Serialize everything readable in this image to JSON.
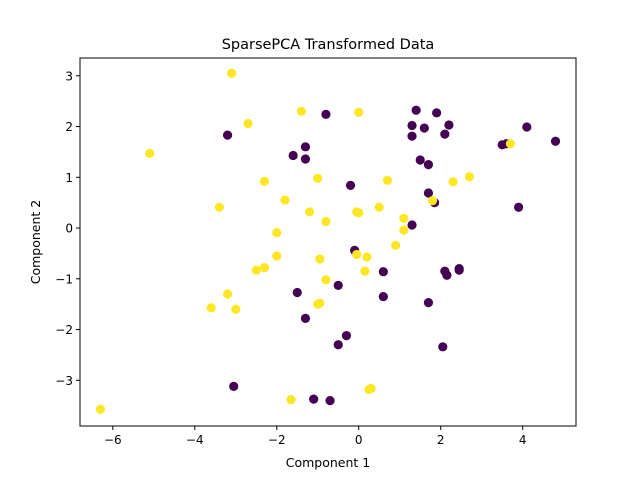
{
  "chart_data": {
    "type": "scatter",
    "title": "SparsePCA Transformed Data",
    "xlabel": "Component 1",
    "ylabel": "Component 2",
    "xlim": [
      -6.8,
      5.3
    ],
    "ylim": [
      -3.9,
      3.35
    ],
    "xticks": [
      -6,
      -4,
      -2,
      0,
      2,
      4
    ],
    "yticks": [
      -3,
      -2,
      -1,
      0,
      1,
      2,
      3
    ],
    "grid": false,
    "legend": "none",
    "series": [
      {
        "color": "#440154",
        "points": [
          {
            "x": -3.2,
            "y": 1.83
          },
          {
            "x": -1.3,
            "y": 1.6
          },
          {
            "x": -1.6,
            "y": 1.43
          },
          {
            "x": -1.3,
            "y": 1.36
          },
          {
            "x": -0.8,
            "y": 2.24
          },
          {
            "x": -0.2,
            "y": 0.84
          },
          {
            "x": 1.3,
            "y": 1.81
          },
          {
            "x": 1.4,
            "y": 2.32
          },
          {
            "x": 1.3,
            "y": 2.02
          },
          {
            "x": 1.6,
            "y": 1.97
          },
          {
            "x": 1.9,
            "y": 2.27
          },
          {
            "x": 2.1,
            "y": 1.85
          },
          {
            "x": 2.2,
            "y": 2.03
          },
          {
            "x": 1.5,
            "y": 1.34
          },
          {
            "x": 1.7,
            "y": 1.25
          },
          {
            "x": 1.7,
            "y": 0.69
          },
          {
            "x": 1.85,
            "y": 0.5
          },
          {
            "x": 1.3,
            "y": 0.06
          },
          {
            "x": 3.6,
            "y": 1.66
          },
          {
            "x": 3.5,
            "y": 1.64
          },
          {
            "x": 4.1,
            "y": 1.99
          },
          {
            "x": 4.8,
            "y": 1.71
          },
          {
            "x": 3.9,
            "y": 0.41
          },
          {
            "x": -0.1,
            "y": -0.44
          },
          {
            "x": 0.6,
            "y": -0.86
          },
          {
            "x": -0.5,
            "y": -1.13
          },
          {
            "x": 0.6,
            "y": -1.35
          },
          {
            "x": 1.7,
            "y": -1.47
          },
          {
            "x": 2.1,
            "y": -0.85
          },
          {
            "x": 2.15,
            "y": -0.93
          },
          {
            "x": 2.45,
            "y": -0.8
          },
          {
            "x": 2.45,
            "y": -0.83
          },
          {
            "x": -1.5,
            "y": -1.27
          },
          {
            "x": -1.3,
            "y": -1.78
          },
          {
            "x": -0.3,
            "y": -2.12
          },
          {
            "x": -0.5,
            "y": -2.3
          },
          {
            "x": 2.05,
            "y": -2.34
          },
          {
            "x": -3.05,
            "y": -3.12
          },
          {
            "x": -1.1,
            "y": -3.37
          },
          {
            "x": -0.7,
            "y": -3.4
          }
        ]
      },
      {
        "color": "#fde725",
        "points": [
          {
            "x": -3.1,
            "y": 3.05
          },
          {
            "x": -2.7,
            "y": 2.06
          },
          {
            "x": -1.4,
            "y": 2.3
          },
          {
            "x": 0.0,
            "y": 2.28
          },
          {
            "x": -5.1,
            "y": 1.47
          },
          {
            "x": 3.7,
            "y": 1.66
          },
          {
            "x": -2.3,
            "y": 0.92
          },
          {
            "x": -1.0,
            "y": 0.98
          },
          {
            "x": 0.7,
            "y": 0.94
          },
          {
            "x": -3.4,
            "y": 0.41
          },
          {
            "x": -1.8,
            "y": 0.55
          },
          {
            "x": -1.2,
            "y": 0.32
          },
          {
            "x": -0.8,
            "y": 0.13
          },
          {
            "x": -0.05,
            "y": 0.32
          },
          {
            "x": 0.0,
            "y": 0.3
          },
          {
            "x": 0.5,
            "y": 0.41
          },
          {
            "x": 1.1,
            "y": 0.19
          },
          {
            "x": 1.1,
            "y": -0.04
          },
          {
            "x": 2.3,
            "y": 0.91
          },
          {
            "x": 2.7,
            "y": 1.01
          },
          {
            "x": 1.8,
            "y": 0.54
          },
          {
            "x": -2.0,
            "y": -0.09
          },
          {
            "x": -2.0,
            "y": -0.55
          },
          {
            "x": -2.3,
            "y": -0.78
          },
          {
            "x": -2.5,
            "y": -0.83
          },
          {
            "x": -0.95,
            "y": -0.61
          },
          {
            "x": -0.05,
            "y": -0.52
          },
          {
            "x": 0.2,
            "y": -0.57
          },
          {
            "x": 0.9,
            "y": -0.34
          },
          {
            "x": 0.15,
            "y": -0.85
          },
          {
            "x": -0.8,
            "y": -1.02
          },
          {
            "x": -3.2,
            "y": -1.3
          },
          {
            "x": -3.6,
            "y": -1.57
          },
          {
            "x": -3.0,
            "y": -1.6
          },
          {
            "x": -1.0,
            "y": -1.5
          },
          {
            "x": -0.95,
            "y": -1.48
          },
          {
            "x": 0.3,
            "y": -3.16
          },
          {
            "x": 0.25,
            "y": -3.18
          },
          {
            "x": -1.65,
            "y": -3.38
          },
          {
            "x": -6.3,
            "y": -3.57
          }
        ]
      }
    ]
  }
}
